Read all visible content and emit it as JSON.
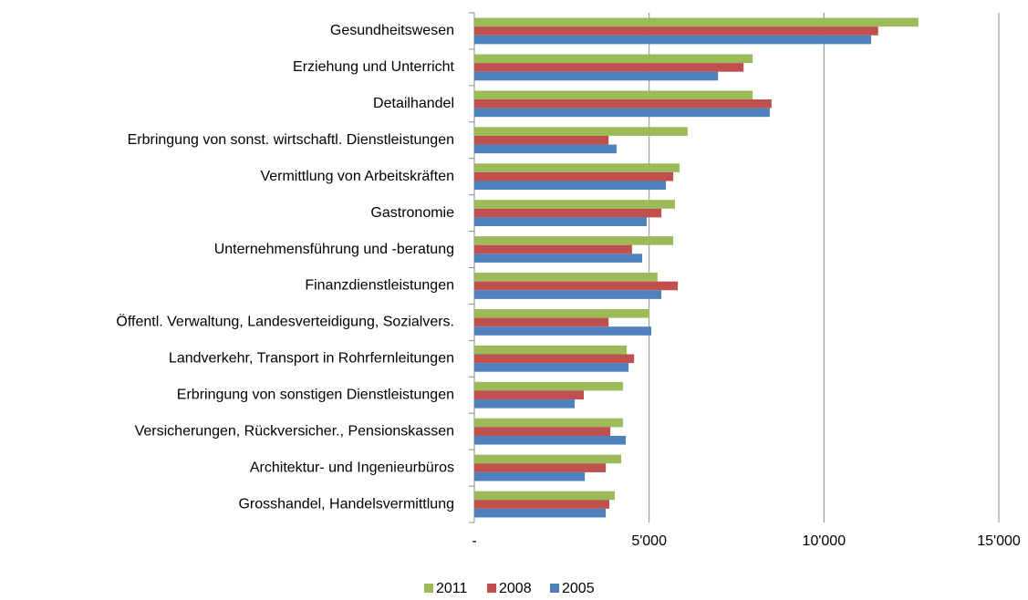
{
  "chart_data": {
    "type": "barh",
    "categories": [
      "Gesundheitswesen",
      "Erziehung und Unterricht",
      "Detailhandel",
      "Erbringung von sonst. wirtschaftl. Dienstleistungen",
      "Vermittlung von Arbeitskräften",
      "Gastronomie",
      "Unternehmensführung und -beratung",
      "Finanzdienstleistungen",
      "Öffentl. Verwaltung, Landesverteidigung, Sozialvers.",
      "Landverkehr, Transport in Rohrfernleitungen",
      "Erbringung von sonstigen Dienstleistungen",
      "Versicherungen, Rückversicher., Pensionskassen",
      "Architektur- und Ingenieurbüros",
      "Grosshandel, Handelsvermittlung"
    ],
    "series": [
      {
        "name": "2011",
        "color": "#9bbb59",
        "values": [
          12700,
          7960,
          7960,
          6100,
          5870,
          5740,
          5690,
          5240,
          5010,
          4360,
          4250,
          4250,
          4200,
          4020
        ]
      },
      {
        "name": "2008",
        "color": "#c0504d",
        "values": [
          11550,
          7700,
          8500,
          3840,
          5690,
          5350,
          4510,
          5820,
          3840,
          4570,
          3130,
          3890,
          3760,
          3860
        ]
      },
      {
        "name": "2005",
        "color": "#4f81bd",
        "values": [
          11350,
          6970,
          8450,
          4070,
          5480,
          4930,
          4800,
          5350,
          5060,
          4410,
          2870,
          4330,
          3160,
          3760
        ]
      }
    ],
    "xlim": [
      0,
      15000
    ],
    "xticks": [
      {
        "value": 0,
        "label": "-"
      },
      {
        "value": 5000,
        "label": "5'000"
      },
      {
        "value": 10000,
        "label": "10'000"
      },
      {
        "value": 15000,
        "label": "15'000"
      }
    ],
    "grid": true,
    "legend": "bottom"
  }
}
